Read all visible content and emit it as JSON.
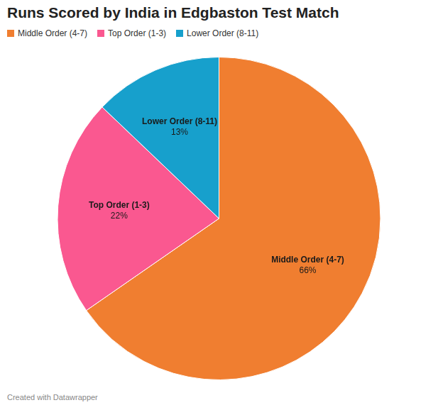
{
  "chart_data": {
    "type": "pie",
    "title": "Runs Scored by India in Edgbaston Test Match",
    "categories": [
      "Middle Order (4-7)",
      "Top Order (1-3)",
      "Lower Order (8-11)"
    ],
    "values": [
      66,
      22,
      13
    ],
    "value_labels": [
      "66%",
      "22%",
      "13%"
    ],
    "colors": [
      "#f07e30",
      "#fa5890",
      "#17a0cc"
    ],
    "legend": "top-left",
    "data_labels": true,
    "caption": "Created with Datawrapper"
  }
}
